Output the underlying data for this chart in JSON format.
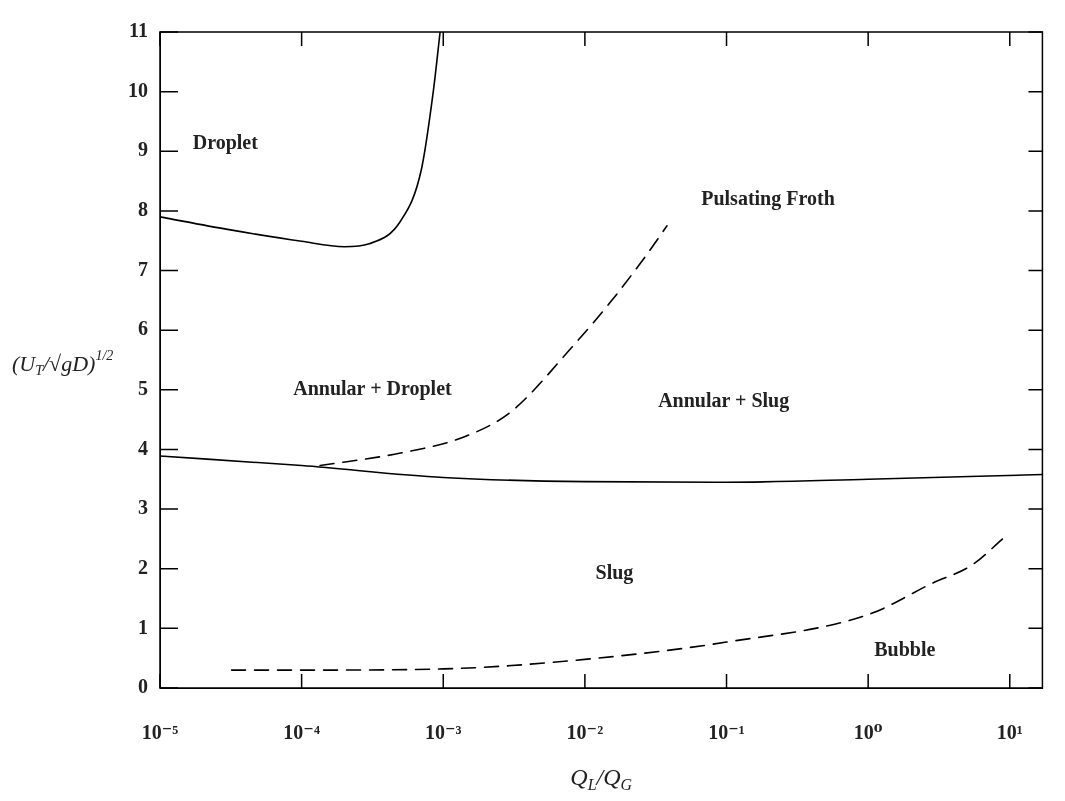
{
  "chart_data": {
    "type": "line",
    "xlabel": "Q$_{L}$/Q$_{G}$",
    "ylabel": "(U$_{T}$/√gD)$^{1/2}$",
    "log": "x",
    "xlim": [
      1e-05,
      17
    ],
    "ylim": [
      0,
      11
    ],
    "xticks": [
      {
        "value": 1e-05,
        "label": "10⁻⁵"
      },
      {
        "value": 0.0001,
        "label": "10⁻⁴"
      },
      {
        "value": 0.001,
        "label": "10⁻³"
      },
      {
        "value": 0.01,
        "label": "10⁻²"
      },
      {
        "value": 0.1,
        "label": "10⁻¹"
      },
      {
        "value": 1,
        "label": "10⁰"
      },
      {
        "value": 10,
        "label": "10¹"
      }
    ],
    "yticks": [
      0,
      1,
      2,
      3,
      4,
      5,
      6,
      7,
      8,
      9,
      10,
      11
    ],
    "grid": false,
    "legend": false,
    "marker": "none",
    "series": [
      {
        "color": "#000000",
        "line_style": "solid",
        "x": [
          1e-05,
          3e-05,
          0.0001,
          0.0002,
          0.0003,
          0.0005,
          0.0007,
          0.00085,
          0.00095
        ],
        "values": [
          7.9,
          7.69,
          7.49,
          7.4,
          7.45,
          7.83,
          8.69,
          10,
          11
        ]
      },
      {
        "color": "#000000",
        "line_style": "solid",
        "x": [
          1e-05,
          0.0001,
          0.001,
          0.01,
          0.1,
          1,
          17
        ],
        "values": [
          3.89,
          3.73,
          3.53,
          3.46,
          3.45,
          3.5,
          3.58
        ]
      },
      {
        "color": "#000000",
        "line_style": "dashed",
        "x": [
          0.000135,
          0.0005,
          0.0014,
          0.003,
          0.008,
          0.0155,
          0.027,
          0.038
        ],
        "values": [
          3.73,
          3.94,
          4.21,
          4.63,
          5.7,
          6.5,
          7.25,
          7.75
        ]
      },
      {
        "color": "#000000",
        "line_style": "dashed",
        "x": [
          3.2e-05,
          0.0001,
          0.001,
          0.01,
          0.1,
          1,
          2.8,
          5.4,
          9
        ],
        "values": [
          0.3,
          0.3,
          0.32,
          0.48,
          0.77,
          1.23,
          1.75,
          2.06,
          2.51
        ]
      }
    ],
    "annotations": [
      "Droplet",
      "Annular + Droplet",
      "Pulsating Froth",
      "Annular + Slug",
      "Slug",
      "Bubble"
    ]
  }
}
